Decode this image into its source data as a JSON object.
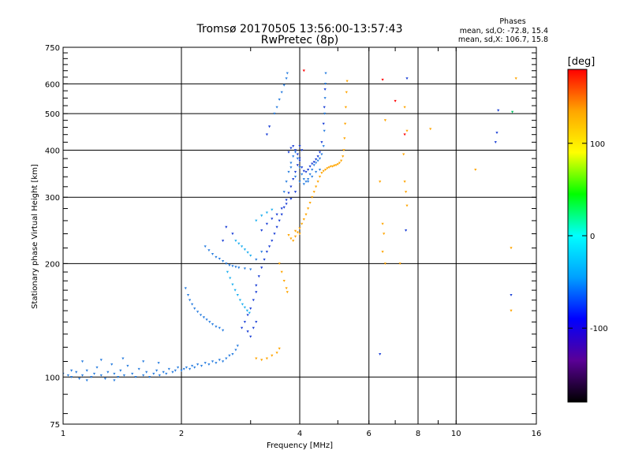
{
  "chart_data": {
    "type": "scatter",
    "title": "Tromsø 20170505 13:56:00-13:57:43",
    "subtitle": "RwPretec (8p)",
    "xlabel": "Frequency [MHz]",
    "ylabel": "Stationary phase Virtual Height [km]",
    "x_scale": "log",
    "y_scale": "log",
    "xlim": [
      1,
      16
    ],
    "ylim": [
      75,
      750
    ],
    "x_ticks": [
      1,
      2,
      4,
      6,
      8,
      10,
      16
    ],
    "x_tick_labels": [
      "1",
      "2",
      "4",
      "6",
      "8",
      "10",
      "16"
    ],
    "y_ticks": [
      75,
      100,
      200,
      300,
      400,
      500,
      600,
      750
    ],
    "y_tick_labels": [
      "75",
      "100",
      "200",
      "300",
      "400",
      "500",
      "600",
      "750"
    ],
    "grid": true,
    "info": {
      "heading": "Phases",
      "line_o": "mean, sd,O: -72.8, 15.4",
      "line_x": "mean, sd,X: 106.7, 15.8"
    },
    "colorbar": {
      "label": "[deg]",
      "range": [
        -180,
        180
      ],
      "ticks": [
        100,
        0,
        -100
      ],
      "tick_labels": [
        "100",
        "0",
        "-100"
      ],
      "palette": [
        "#000000",
        "#5a0096",
        "#0000ff",
        "#00a0ff",
        "#00ffff",
        "#00ff00",
        "#ffff00",
        "#ffa500",
        "#ff0000"
      ]
    },
    "series": [
      {
        "color": "#2b7fe0",
        "points": [
          [
            1.0,
            102
          ],
          [
            1.03,
            101
          ],
          [
            1.05,
            100
          ],
          [
            1.08,
            103
          ],
          [
            1.1,
            99
          ],
          [
            1.12,
            101
          ],
          [
            1.15,
            104
          ],
          [
            1.18,
            100
          ],
          [
            1.2,
            102
          ],
          [
            1.22,
            106
          ],
          [
            1.25,
            101
          ],
          [
            1.28,
            99
          ],
          [
            1.3,
            103
          ],
          [
            1.33,
            108
          ],
          [
            1.35,
            102
          ],
          [
            1.38,
            100
          ],
          [
            1.4,
            104
          ],
          [
            1.43,
            101
          ],
          [
            1.46,
            107
          ],
          [
            1.5,
            102
          ],
          [
            1.53,
            100
          ],
          [
            1.56,
            105
          ],
          [
            1.6,
            101
          ],
          [
            1.63,
            103
          ],
          [
            1.66,
            100
          ],
          [
            1.7,
            102
          ],
          [
            1.73,
            104
          ],
          [
            1.76,
            101
          ],
          [
            1.8,
            103
          ],
          [
            1.83,
            102
          ],
          [
            1.86,
            105
          ],
          [
            1.9,
            103
          ],
          [
            1.93,
            104
          ],
          [
            1.96,
            106
          ],
          [
            2.0,
            104
          ],
          [
            2.03,
            105
          ],
          [
            2.06,
            106
          ],
          [
            2.1,
            105
          ],
          [
            2.13,
            107
          ],
          [
            2.16,
            106
          ],
          [
            2.2,
            108
          ],
          [
            2.25,
            107
          ],
          [
            2.3,
            109
          ],
          [
            2.35,
            108
          ],
          [
            2.4,
            110
          ],
          [
            2.45,
            109
          ],
          [
            2.5,
            111
          ],
          [
            2.55,
            110
          ],
          [
            2.6,
            112
          ],
          [
            2.65,
            114
          ],
          [
            2.7,
            115
          ],
          [
            2.75,
            118
          ],
          [
            2.78,
            121
          ],
          [
            1.12,
            110
          ],
          [
            1.25,
            111
          ],
          [
            1.42,
            112
          ],
          [
            1.6,
            110
          ],
          [
            1.75,
            109
          ],
          [
            1.15,
            98
          ],
          [
            1.35,
            98
          ],
          [
            1.05,
            104
          ]
        ]
      },
      {
        "color": "#2b7fe0",
        "points": [
          [
            2.05,
            172
          ],
          [
            2.08,
            165
          ],
          [
            2.1,
            160
          ],
          [
            2.13,
            156
          ],
          [
            2.16,
            152
          ],
          [
            2.2,
            149
          ],
          [
            2.24,
            146
          ],
          [
            2.28,
            144
          ],
          [
            2.32,
            142
          ],
          [
            2.36,
            140
          ],
          [
            2.4,
            138
          ],
          [
            2.45,
            136
          ],
          [
            2.5,
            135
          ],
          [
            2.55,
            133
          ],
          [
            2.3,
            222
          ],
          [
            2.35,
            217
          ],
          [
            2.4,
            212
          ],
          [
            2.45,
            208
          ],
          [
            2.5,
            206
          ],
          [
            2.55,
            203
          ],
          [
            2.6,
            200
          ],
          [
            2.65,
            198
          ],
          [
            2.7,
            197
          ],
          [
            2.75,
            196
          ],
          [
            2.8,
            195
          ],
          [
            2.9,
            194
          ],
          [
            3.0,
            193
          ],
          [
            3.1,
            205
          ],
          [
            3.2,
            215
          ]
        ]
      },
      {
        "color": "#20b0f0",
        "points": [
          [
            2.62,
            190
          ],
          [
            2.66,
            183
          ],
          [
            2.7,
            176
          ],
          [
            2.74,
            170
          ],
          [
            2.78,
            165
          ],
          [
            2.82,
            160
          ],
          [
            2.86,
            156
          ],
          [
            2.9,
            153
          ],
          [
            2.94,
            150
          ],
          [
            2.98,
            148
          ],
          [
            2.75,
            230
          ],
          [
            2.8,
            226
          ],
          [
            2.85,
            222
          ],
          [
            2.9,
            218
          ],
          [
            2.95,
            214
          ],
          [
            3.0,
            210
          ],
          [
            3.1,
            260
          ],
          [
            3.2,
            268
          ],
          [
            3.3,
            273
          ],
          [
            3.4,
            278
          ]
        ]
      },
      {
        "color": "#1a3fd6",
        "points": [
          [
            2.85,
            135
          ],
          [
            2.9,
            140
          ],
          [
            2.95,
            146
          ],
          [
            3.0,
            152
          ],
          [
            3.05,
            160
          ],
          [
            3.1,
            168
          ],
          [
            3.1,
            175
          ],
          [
            3.15,
            185
          ],
          [
            3.2,
            195
          ],
          [
            3.25,
            205
          ],
          [
            3.3,
            215
          ],
          [
            3.35,
            222
          ],
          [
            3.4,
            230
          ],
          [
            3.45,
            240
          ],
          [
            3.5,
            250
          ],
          [
            3.55,
            260
          ],
          [
            3.6,
            270
          ],
          [
            3.65,
            282
          ],
          [
            3.7,
            295
          ],
          [
            3.75,
            308
          ],
          [
            3.8,
            320
          ],
          [
            3.85,
            335
          ],
          [
            3.9,
            350
          ],
          [
            3.95,
            365
          ],
          [
            4.0,
            380
          ],
          [
            3.05,
            135
          ],
          [
            3.1,
            140
          ],
          [
            3.0,
            128
          ],
          [
            2.95,
            132
          ],
          [
            3.2,
            245
          ],
          [
            3.3,
            255
          ],
          [
            3.4,
            263
          ],
          [
            3.5,
            270
          ],
          [
            3.6,
            280
          ],
          [
            3.7,
            288
          ],
          [
            3.8,
            297
          ],
          [
            3.9,
            310
          ],
          [
            2.6,
            250
          ],
          [
            2.7,
            240
          ],
          [
            2.55,
            230
          ]
        ]
      },
      {
        "color": "#2b7fe0",
        "points": [
          [
            3.65,
            310
          ],
          [
            3.7,
            330
          ],
          [
            3.75,
            350
          ],
          [
            3.8,
            370
          ],
          [
            3.85,
            385
          ],
          [
            3.9,
            395
          ],
          [
            3.95,
            380
          ],
          [
            4.0,
            360
          ],
          [
            4.05,
            345
          ],
          [
            4.1,
            335
          ],
          [
            4.15,
            330
          ],
          [
            4.2,
            335
          ],
          [
            4.25,
            345
          ],
          [
            4.3,
            355
          ],
          [
            4.35,
            365
          ],
          [
            4.4,
            370
          ],
          [
            4.45,
            375
          ],
          [
            4.5,
            380
          ],
          [
            4.55,
            390
          ],
          [
            4.6,
            410
          ],
          [
            4.62,
            450
          ],
          [
            4.63,
            500
          ],
          [
            4.64,
            550
          ],
          [
            4.65,
            600
          ],
          [
            4.66,
            640
          ],
          [
            3.8,
            360
          ],
          [
            3.9,
            340
          ],
          [
            4.0,
            330
          ],
          [
            4.1,
            325
          ],
          [
            4.2,
            330
          ],
          [
            4.3,
            340
          ],
          [
            4.4,
            350
          ],
          [
            4.5,
            355
          ],
          [
            3.45,
            500
          ],
          [
            3.5,
            520
          ],
          [
            3.55,
            545
          ],
          [
            3.6,
            570
          ],
          [
            3.65,
            595
          ],
          [
            3.7,
            620
          ],
          [
            3.72,
            640
          ]
        ]
      },
      {
        "color": "#1a3fd6",
        "points": [
          [
            3.75,
            395
          ],
          [
            3.8,
            405
          ],
          [
            3.85,
            410
          ],
          [
            3.9,
            400
          ],
          [
            3.95,
            390
          ],
          [
            4.0,
            375
          ],
          [
            4.05,
            360
          ],
          [
            4.1,
            352
          ],
          [
            4.15,
            350
          ],
          [
            4.2,
            355
          ],
          [
            4.25,
            362
          ],
          [
            4.3,
            368
          ],
          [
            4.35,
            372
          ],
          [
            4.4,
            378
          ],
          [
            4.45,
            385
          ],
          [
            4.5,
            395
          ],
          [
            4.55,
            420
          ],
          [
            4.6,
            470
          ],
          [
            4.62,
            520
          ],
          [
            4.64,
            580
          ],
          [
            4.0,
            410
          ],
          [
            4.05,
            400
          ],
          [
            3.3,
            440
          ],
          [
            3.35,
            462
          ]
        ]
      },
      {
        "color": "#ffa500",
        "points": [
          [
            3.75,
            238
          ],
          [
            3.8,
            233
          ],
          [
            3.85,
            230
          ],
          [
            3.9,
            236
          ],
          [
            3.95,
            242
          ],
          [
            4.0,
            248
          ],
          [
            4.05,
            255
          ],
          [
            4.1,
            262
          ],
          [
            4.15,
            270
          ],
          [
            4.2,
            280
          ],
          [
            4.25,
            290
          ],
          [
            4.3,
            300
          ],
          [
            4.35,
            310
          ],
          [
            4.4,
            320
          ],
          [
            4.45,
            330
          ],
          [
            4.5,
            340
          ],
          [
            4.55,
            348
          ],
          [
            4.6,
            352
          ],
          [
            4.65,
            355
          ],
          [
            4.7,
            358
          ],
          [
            4.75,
            360
          ],
          [
            4.8,
            362
          ],
          [
            4.85,
            362
          ],
          [
            4.9,
            364
          ],
          [
            4.95,
            365
          ],
          [
            5.0,
            367
          ],
          [
            5.05,
            370
          ],
          [
            5.1,
            375
          ],
          [
            5.15,
            385
          ],
          [
            5.18,
            400
          ],
          [
            5.2,
            430
          ],
          [
            5.22,
            470
          ],
          [
            5.24,
            520
          ],
          [
            5.26,
            570
          ],
          [
            5.28,
            610
          ],
          [
            3.9,
            244
          ],
          [
            4.0,
            240
          ],
          [
            3.55,
            200
          ],
          [
            3.6,
            190
          ],
          [
            3.65,
            180
          ],
          [
            3.7,
            172
          ],
          [
            3.72,
            168
          ],
          [
            3.1,
            112
          ],
          [
            3.2,
            111
          ],
          [
            3.3,
            112
          ],
          [
            3.4,
            114
          ],
          [
            3.5,
            116
          ],
          [
            3.55,
            119
          ]
        ]
      },
      {
        "color": "#ffa500",
        "points": [
          [
            6.4,
            330
          ],
          [
            6.5,
            255
          ],
          [
            6.55,
            240
          ],
          [
            6.6,
            200
          ],
          [
            6.5,
            215
          ],
          [
            7.4,
            330
          ],
          [
            7.45,
            310
          ],
          [
            7.5,
            285
          ],
          [
            7.35,
            390
          ],
          [
            7.5,
            450
          ],
          [
            8.6,
            455
          ],
          [
            11.2,
            355
          ],
          [
            14.2,
            620
          ],
          [
            13.8,
            220
          ],
          [
            13.8,
            150
          ],
          [
            7.2,
            200
          ],
          [
            6.6,
            480
          ],
          [
            7.4,
            520
          ]
        ]
      },
      {
        "color": "#ff0000",
        "points": [
          [
            4.1,
            650
          ],
          [
            6.5,
            615
          ],
          [
            7.0,
            540
          ],
          [
            7.4,
            440
          ]
        ]
      },
      {
        "color": "#1a3fd6",
        "points": [
          [
            6.4,
            115
          ],
          [
            7.45,
            245
          ],
          [
            7.5,
            620
          ],
          [
            12.7,
            445
          ],
          [
            12.8,
            510
          ],
          [
            13.8,
            165
          ],
          [
            12.6,
            420
          ]
        ]
      },
      {
        "color": "#00c060",
        "points": [
          [
            13.9,
            505
          ]
        ]
      }
    ]
  }
}
